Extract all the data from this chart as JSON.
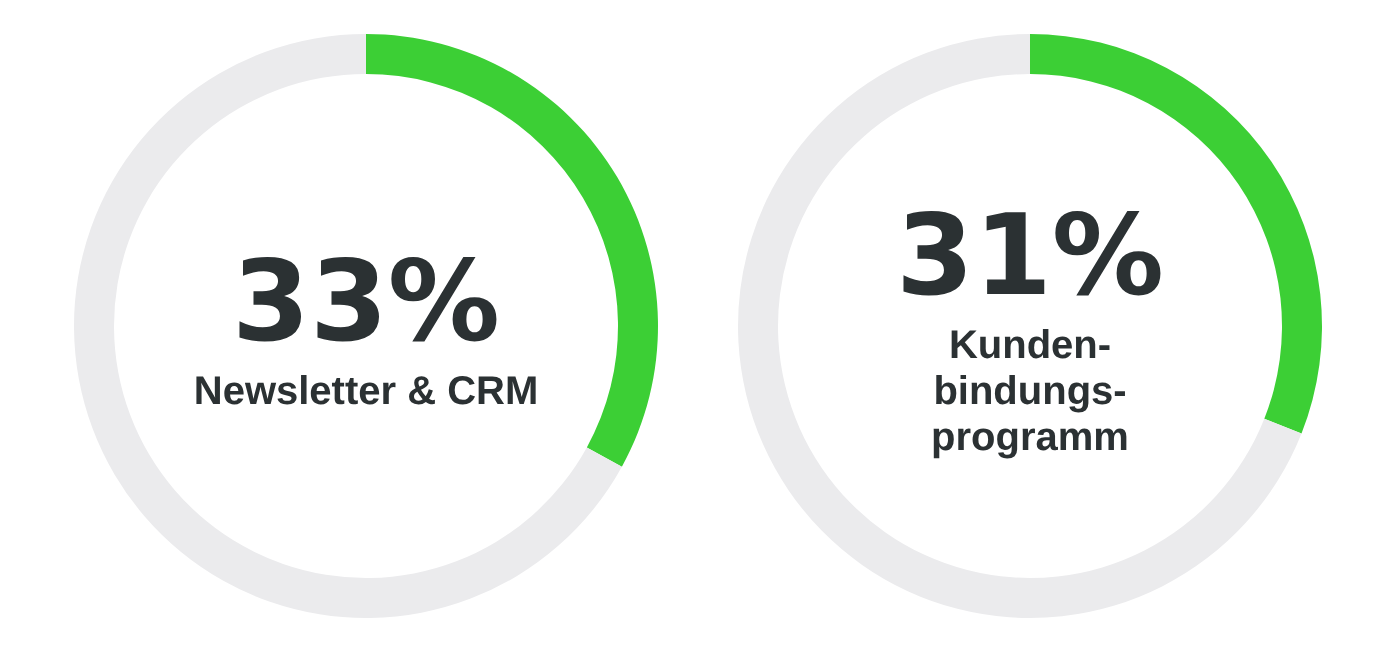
{
  "chart_data": [
    {
      "type": "donut",
      "categories": [
        "Newsletter & CRM",
        null
      ],
      "values": [
        33,
        67
      ],
      "colors": [
        "#3ccf35",
        "#ebebed"
      ],
      "value_labels": [
        "33%",
        null
      ]
    },
    {
      "type": "donut",
      "categories": [
        "Kunden-bindungs-programm",
        null
      ],
      "values": [
        31,
        69
      ],
      "colors": [
        "#3ccf35",
        "#ebebed"
      ],
      "value_labels": [
        "31%",
        null
      ]
    }
  ]
}
